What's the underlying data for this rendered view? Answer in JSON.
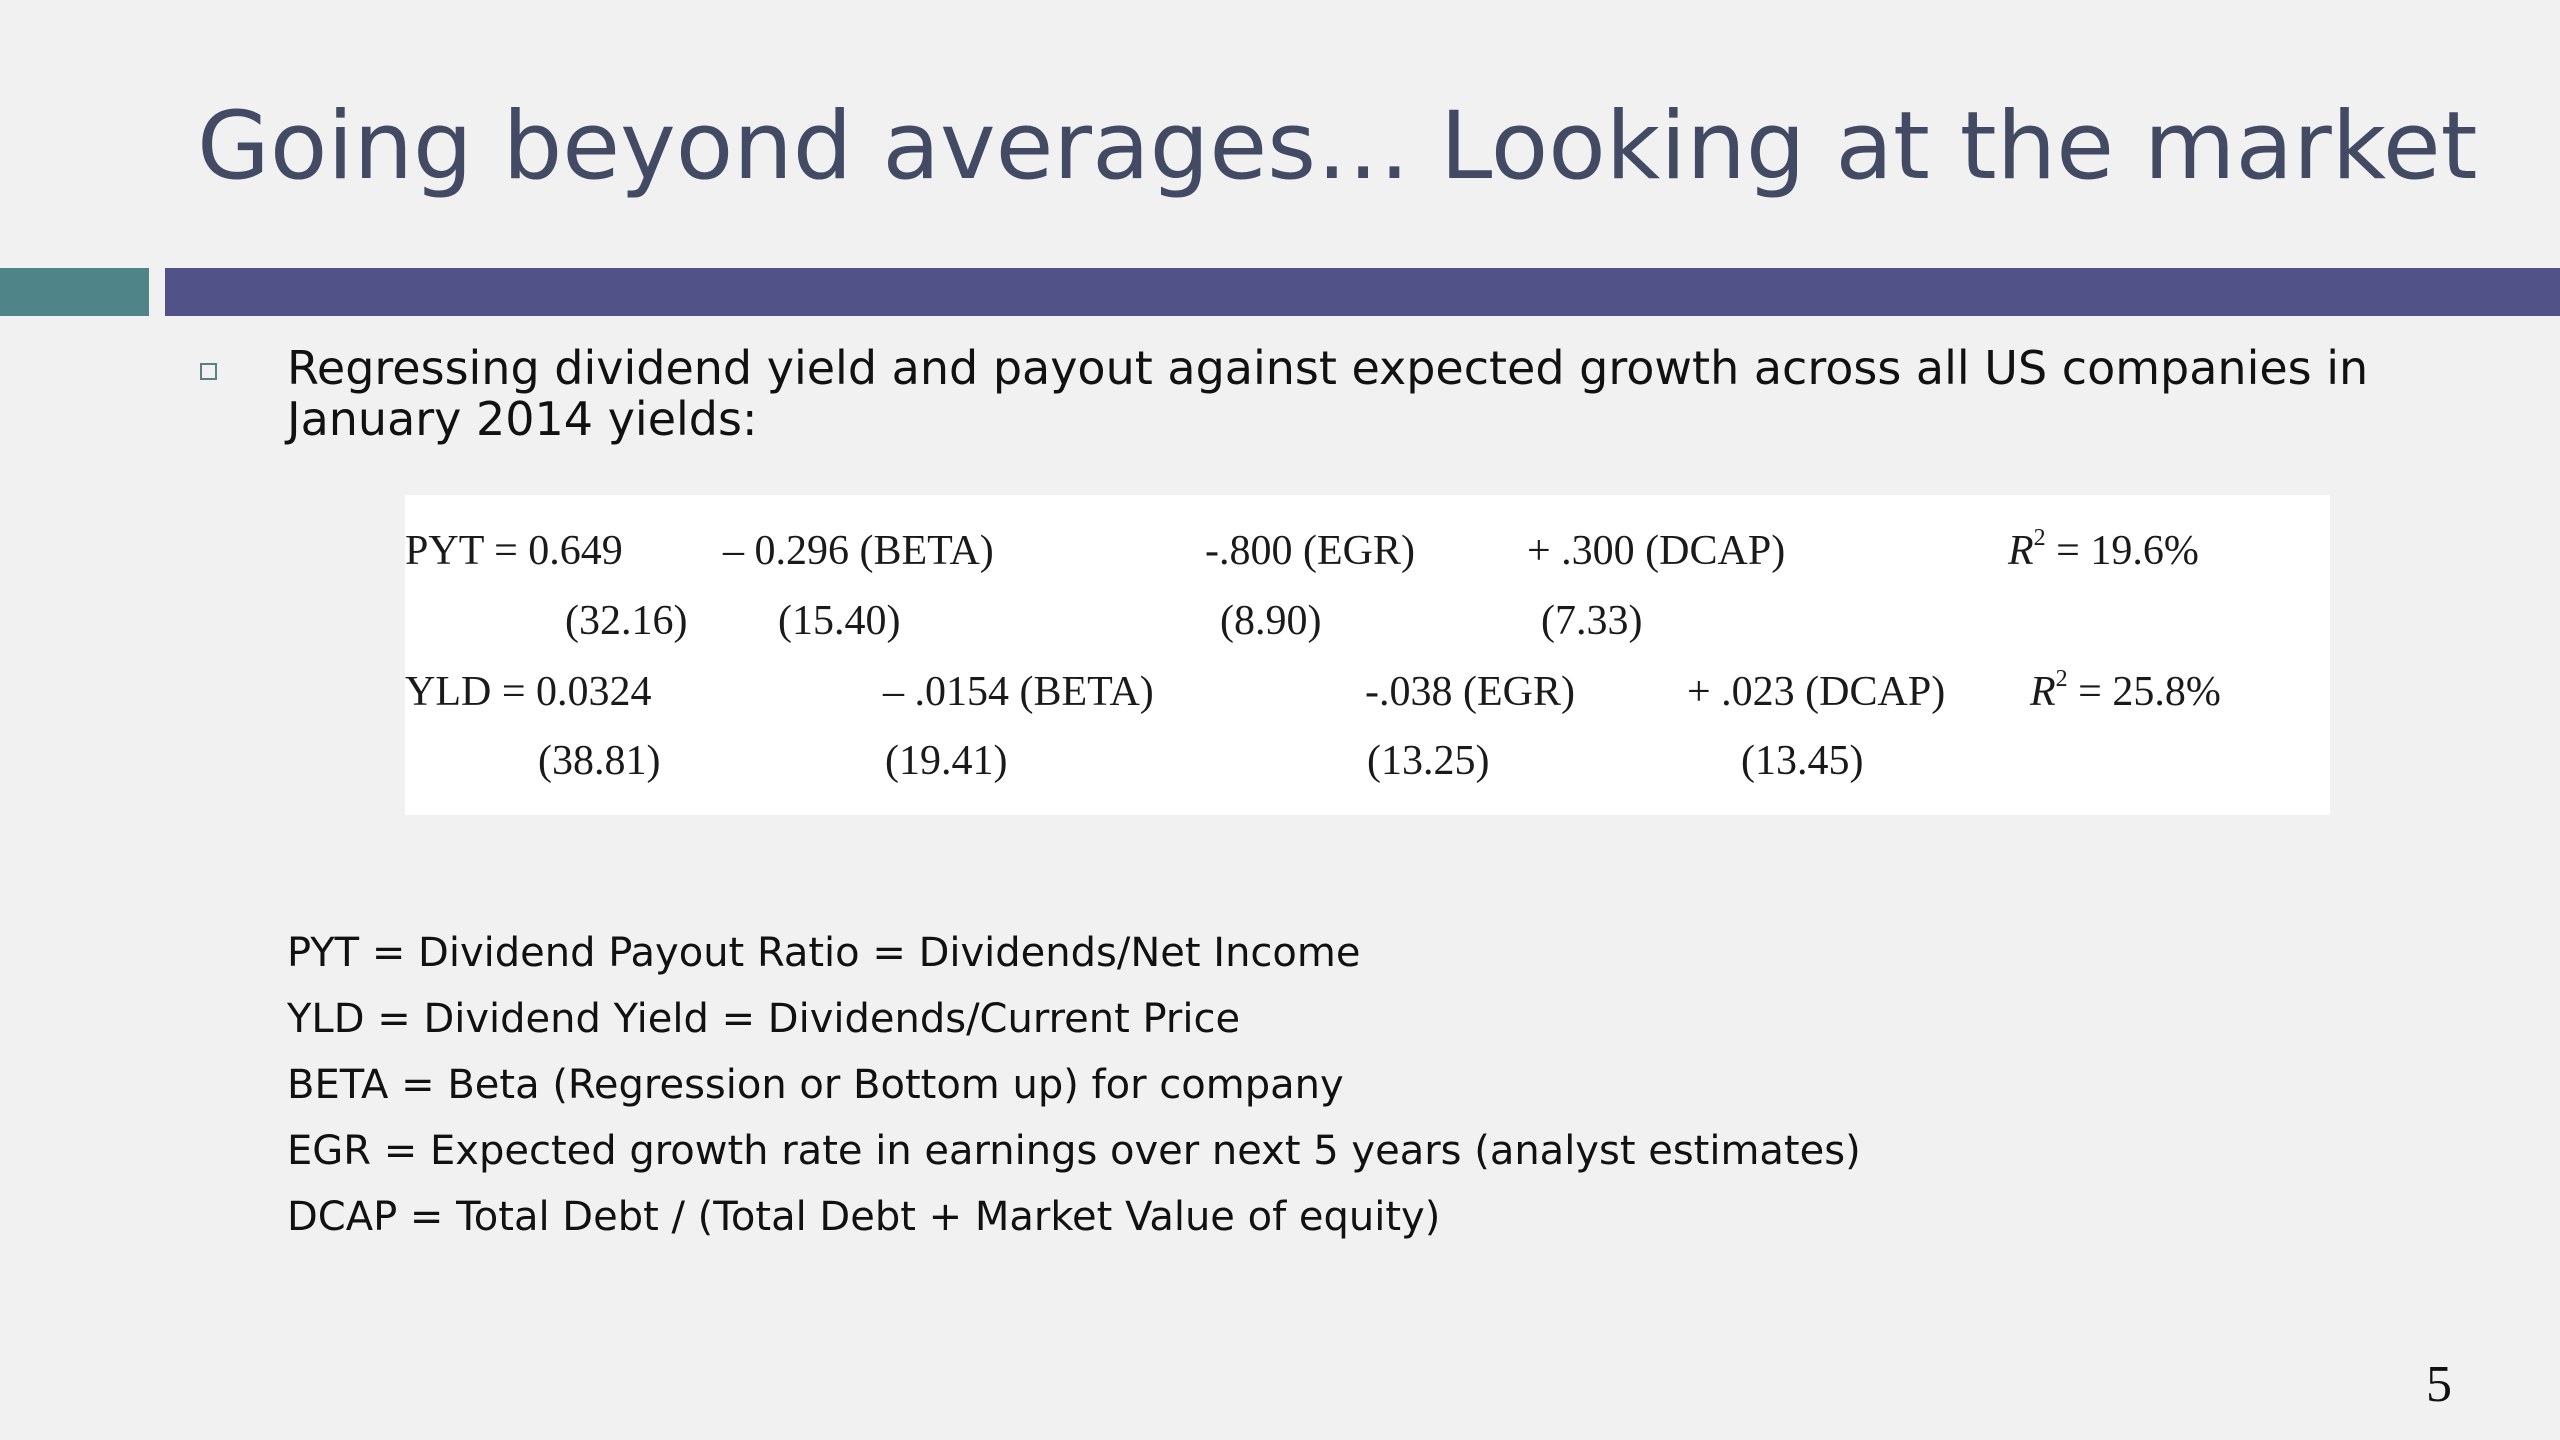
{
  "slide": {
    "title": "Going beyond averages… Looking at the market",
    "bullet": "Regressing dividend yield and payout against expected growth across all US companies in January 2014 yields:",
    "page_number": "5",
    "colors": {
      "title": "#434a64",
      "bar_teal": "#4f8589",
      "bar_navy": "#515287",
      "background": "#f1f1f1"
    }
  },
  "equations": {
    "pyt": {
      "lhs": "PYT = 0.649",
      "beta": "– 0.296 (BETA)",
      "egr": "-.800 (EGR)",
      "dcap": "+ .300 (DCAP)",
      "r2_label": "R",
      "r2_sup": "2",
      "r2_value": " = 19.6%",
      "t_const": "(32.16)",
      "t_beta": "(15.40)",
      "t_egr": "(8.90)",
      "t_dcap": "(7.33)"
    },
    "yld": {
      "lhs": "YLD = 0.0324",
      "beta": "– .0154 (BETA)",
      "egr": "-.038 (EGR)",
      "dcap": "+ .023 (DCAP)",
      "r2_label": "R",
      "r2_sup": "2",
      "r2_value": " = 25.8%",
      "t_const": "(38.81)",
      "t_beta": "(19.41)",
      "t_egr": "(13.25)",
      "t_dcap": "(13.45)"
    }
  },
  "definitions": [
    "PYT = Dividend Payout Ratio = Dividends/Net Income",
    "YLD = Dividend Yield = Dividends/Current Price",
    "BETA = Beta (Regression or Bottom up) for company",
    "EGR = Expected growth rate in earnings over next 5 years (analyst estimates)",
    "DCAP = Total Debt / (Total Debt + Market Value of equity)"
  ]
}
